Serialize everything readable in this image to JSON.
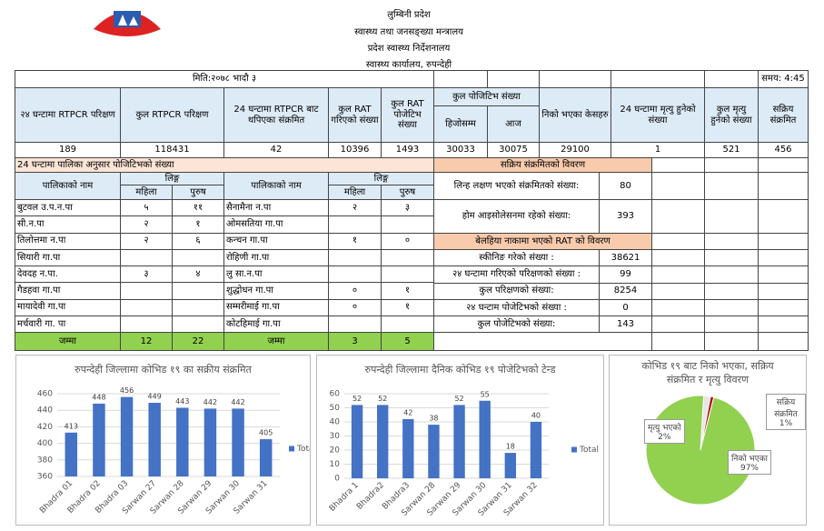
{
  "header": {
    "lines": [
      "लुम्बिनी प्रदेश",
      "स्वास्थ्य तथा जनसङ्ख्या मन्त्रालय",
      "प्रदेश स्वास्थ्य निर्देशनालय",
      "स्वास्थ्य कार्यालय, रुपन्देही"
    ]
  },
  "table": {
    "date": "मिति:२०७८ भादौ ३",
    "time": "समय: 4:45",
    "columns": [
      "२४ घन्टामा RTPCR परिक्षण",
      "कुल RTPCR परिक्षण",
      "24 घन्टामा RTPCR बाट थपिएका संक्रमित",
      "कुल RAT गरिएको संख्या",
      "कुल RAT पोजेटिभ संख्या",
      "कुल पोजिटिभ संख्या",
      "निको भएका केसहरु",
      "24 घन्टामा मृत्यु हुनेको संख्या",
      "कुल मृत्यु हुनेको संख्या",
      "सक्रिय संक्रमित"
    ],
    "subcolumns": [
      "हिजोसम्म",
      "आज"
    ],
    "values": [
      189,
      118431,
      42,
      10396,
      1493,
      30033,
      30075,
      29100,
      1,
      521,
      456
    ]
  },
  "municipal": {
    "title": "24 घन्टामा पालिका अनुसार पोजिटिभको संख्या",
    "name_header": "पालिकाको नाम",
    "gender_header": "लिङ्ग",
    "female": "महिला",
    "male": "पुरुष",
    "rows": [
      [
        "बुटवल उ.प.न.पा",
        "५",
        "११",
        "सैनामैना न.पा",
        "२",
        "३"
      ],
      [
        "सी.न.पा",
        "२",
        "१",
        "ओमसतिया गा.पा",
        null,
        null
      ],
      [
        "तिलोत्तमा न.पा",
        "२",
        "६",
        "कन्चन गा.पा",
        "१",
        "०"
      ],
      [
        "सियारी गा.पा",
        null,
        null,
        "रोहिणी गा.पा",
        null,
        null
      ],
      [
        "देवदह न.पा.",
        "३",
        "४",
        "लु सा.न.पा",
        null,
        null
      ],
      [
        "गैडहवा गा.पा",
        null,
        null,
        "शुद्धोधन गा.पा",
        "०",
        "१"
      ],
      [
        "मायादेवी गा.पा",
        null,
        null,
        "सम्मरीमाई गा.पा",
        "०",
        "१"
      ],
      [
        "मर्चवारी गा. पा",
        null,
        null,
        "कोटहिमाई गा.पा",
        null,
        null
      ]
    ],
    "total_label": "जम्मा",
    "totals": [
      12,
      22,
      3,
      5
    ]
  },
  "active": {
    "title": "सक्रिय संक्रमितको विवरण",
    "rows": [
      [
        "लिन्ह लक्षण भएको संक्रमितको संख्या:",
        80
      ],
      [
        "होम आइसोलेसनमा रहेको संख्या:",
        393
      ]
    ]
  },
  "belahiya": {
    "title": "बेलहिया नाकामा भएको RAT को विवरण",
    "rows": [
      [
        "स्कीनिङ गरेको संख्या :",
        38621
      ],
      [
        "२४ घन्टामा गरिएको परिक्षणको संख्या :",
        99
      ],
      [
        "कुल परिक्षणको संख्या:",
        8254
      ],
      [
        "२४ घन्टाम पोजेटिभको संख्या :",
        0
      ],
      [
        "कुल पोजेटिभको संख्या:",
        143
      ]
    ]
  },
  "chart_data": [
    {
      "type": "bar",
      "title": "रुपन्देही जिल्लामा कोभिड १९ का सक्रीय संक्रमित",
      "categories": [
        "Bhadra 01",
        "Bhadra 02",
        "Bhadra 03",
        "Sarwan 27",
        "Sarwan 28",
        "Sarwan 29",
        "Sarwan 30",
        "Sarwan 31"
      ],
      "series": [
        {
          "name": "Total",
          "color": "#4472c4",
          "values": [
            413,
            448,
            456,
            449,
            443,
            442,
            442,
            405
          ]
        }
      ],
      "ylim": [
        360,
        460
      ],
      "yticks": [
        360,
        380,
        400,
        420,
        440,
        460
      ],
      "grid": true,
      "legend": "right"
    },
    {
      "type": "bar",
      "title": "रुपन्देही जिल्लामा दैनिक कोभिड १९ पोजेटिभको टेन्ड",
      "categories": [
        "Bhadra 1",
        "Bhadra2",
        "Bhadra3",
        "Sarwan 28",
        "Sarwan 29",
        "Sarwan 30",
        "Sarwan 31",
        "Sarwan 32"
      ],
      "series": [
        {
          "name": "Total",
          "color": "#4472c4",
          "values": [
            52,
            52,
            42,
            38,
            52,
            55,
            18,
            40
          ]
        }
      ],
      "ylim": [
        0,
        60
      ],
      "yticks": [
        0,
        10,
        20,
        30,
        40,
        50,
        60
      ],
      "grid": true,
      "legend": "right"
    },
    {
      "type": "pie",
      "title": "कोभिड १९ बाट निको भएका, सक्रिय संक्रमित र मृत्यु विवरण",
      "categories": [
        "मृत्यु भएको",
        "सक्रिय संक्रमित",
        "निको भएका"
      ],
      "values": [
        2,
        1,
        97
      ],
      "value_labels": [
        "2%",
        "1%",
        "97%"
      ],
      "colors": [
        "#e7e6e6",
        "#c00000",
        "#92d050"
      ]
    }
  ]
}
